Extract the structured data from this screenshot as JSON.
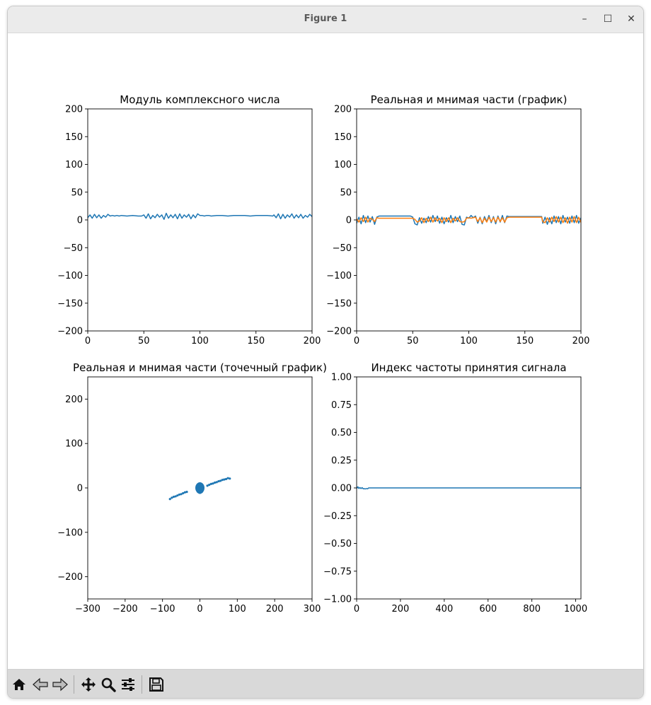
{
  "window": {
    "title": "Figure 1",
    "controls": {
      "minimize": "–",
      "maximize": "☐",
      "close": "✕"
    }
  },
  "toolbar": {
    "icons": [
      "home-icon",
      "back-icon",
      "forward-icon",
      "pan-icon",
      "zoom-icon",
      "configure-subplots-icon",
      "save-icon"
    ]
  },
  "colors": {
    "series1": "#1f77b4",
    "series2": "#ff7f0e"
  },
  "chart_data": [
    {
      "type": "line",
      "title": "Модуль комплексного числа",
      "xlim": [
        0,
        200
      ],
      "ylim": [
        -200,
        200
      ],
      "xticks": [
        0,
        50,
        100,
        150,
        200
      ],
      "xtick_labels": [
        "0",
        "50",
        "100",
        "150",
        "200"
      ],
      "yticks": [
        -200,
        -150,
        -100,
        -50,
        0,
        50,
        100,
        150,
        200
      ],
      "ytick_labels": [
        "−200",
        "−150",
        "−100",
        "−50",
        "0",
        "50",
        "100",
        "150",
        "200"
      ],
      "series": [
        {
          "x": [
            0,
            2,
            4,
            6,
            8,
            10,
            12,
            14,
            16,
            18,
            20,
            22,
            24,
            26,
            28,
            30,
            35,
            40,
            45,
            48,
            50,
            52,
            54,
            56,
            58,
            60,
            62,
            64,
            66,
            68,
            70,
            72,
            74,
            76,
            78,
            80,
            82,
            84,
            86,
            88,
            90,
            92,
            94,
            96,
            98,
            100,
            102,
            104,
            106,
            108,
            110,
            115,
            120,
            125,
            130,
            135,
            140,
            145,
            150,
            155,
            160,
            165,
            166,
            168,
            170,
            172,
            174,
            176,
            178,
            180,
            182,
            184,
            186,
            188,
            190,
            192,
            194,
            196,
            198,
            200
          ],
          "y": [
            4,
            9,
            3,
            10,
            4,
            9,
            3,
            8,
            5,
            10,
            7,
            8,
            7,
            8,
            7,
            8,
            7,
            8,
            7,
            7,
            9,
            3,
            11,
            2,
            8,
            4,
            10,
            5,
            9,
            1,
            12,
            3,
            9,
            4,
            10,
            2,
            11,
            3,
            9,
            5,
            10,
            2,
            9,
            4,
            11,
            8,
            8,
            7,
            8,
            8,
            7,
            8,
            8,
            7,
            8,
            8,
            8,
            7,
            8,
            8,
            8,
            7,
            9,
            4,
            11,
            2,
            10,
            3,
            9,
            5,
            11,
            3,
            9,
            4,
            10,
            3,
            8,
            5,
            10,
            6
          ]
        }
      ]
    },
    {
      "type": "line",
      "title": "Реальная и мнимая части (график)",
      "xlim": [
        0,
        200
      ],
      "ylim": [
        -200,
        200
      ],
      "xticks": [
        0,
        50,
        100,
        150,
        200
      ],
      "xtick_labels": [
        "0",
        "50",
        "100",
        "150",
        "200"
      ],
      "yticks": [
        -200,
        -150,
        -100,
        -50,
        0,
        50,
        100,
        150,
        200
      ],
      "ytick_labels": [
        "−200",
        "−150",
        "−100",
        "−50",
        "0",
        "50",
        "100",
        "150",
        "200"
      ],
      "series": [
        {
          "x": [
            0,
            2,
            4,
            6,
            8,
            10,
            12,
            14,
            16,
            18,
            20,
            25,
            30,
            35,
            40,
            45,
            48,
            50,
            52,
            54,
            56,
            58,
            60,
            62,
            64,
            66,
            68,
            70,
            72,
            74,
            76,
            78,
            80,
            82,
            84,
            86,
            88,
            90,
            92,
            94,
            96,
            98,
            100,
            102,
            104,
            106,
            108,
            110,
            112,
            114,
            116,
            118,
            120,
            122,
            124,
            126,
            128,
            130,
            132,
            134,
            136,
            140,
            145,
            150,
            155,
            160,
            165,
            166,
            168,
            170,
            172,
            174,
            176,
            178,
            180,
            182,
            184,
            186,
            188,
            190,
            192,
            194,
            196,
            198,
            200
          ],
          "y": [
            -6,
            5,
            -7,
            8,
            -5,
            7,
            -4,
            6,
            -8,
            5,
            7,
            7,
            7,
            7,
            7,
            7,
            7,
            5,
            -7,
            -9,
            4,
            -6,
            3,
            -5,
            6,
            -4,
            8,
            -3,
            7,
            -6,
            5,
            -7,
            4,
            -4,
            8,
            -5,
            6,
            -3,
            7,
            -8,
            -9,
            5,
            3,
            8,
            4,
            7,
            -6,
            5,
            -7,
            6,
            -3,
            8,
            -5,
            6,
            -7,
            7,
            -4,
            8,
            -5,
            7,
            6,
            6,
            6,
            6,
            6,
            6,
            6,
            -6,
            5,
            -8,
            4,
            -7,
            7,
            -5,
            6,
            -7,
            8,
            -4,
            5,
            -6,
            7,
            -5,
            8,
            -6,
            4
          ]
        },
        {
          "x": [
            0,
            2,
            4,
            6,
            8,
            10,
            12,
            14,
            16,
            18,
            20,
            25,
            30,
            35,
            40,
            45,
            48,
            50,
            52,
            54,
            56,
            58,
            60,
            62,
            64,
            66,
            68,
            70,
            72,
            74,
            76,
            78,
            80,
            82,
            84,
            86,
            88,
            90,
            92,
            94,
            96,
            98,
            100,
            102,
            104,
            106,
            108,
            110,
            112,
            114,
            116,
            118,
            120,
            122,
            124,
            126,
            128,
            130,
            132,
            134,
            136,
            140,
            145,
            150,
            155,
            160,
            165,
            166,
            168,
            170,
            172,
            174,
            176,
            178,
            180,
            182,
            184,
            186,
            188,
            190,
            192,
            194,
            196,
            198,
            200
          ],
          "y": [
            2,
            -4,
            4,
            -3,
            5,
            -4,
            3,
            1,
            -3,
            4,
            3,
            3,
            3,
            3,
            3,
            3,
            3,
            3,
            1,
            -4,
            -2,
            4,
            -5,
            3,
            -3,
            5,
            -4,
            4,
            -2,
            3,
            -5,
            4,
            -3,
            4,
            -5,
            3,
            -2,
            4,
            -3,
            -4,
            -3,
            3,
            4,
            3,
            4,
            5,
            -3,
            4,
            -5,
            3,
            -4,
            5,
            -3,
            4,
            -4,
            5,
            -3,
            4,
            -4,
            4,
            5,
            5,
            5,
            5,
            5,
            5,
            5,
            -3,
            -5,
            4,
            -4,
            5,
            -3,
            6,
            -4,
            5,
            -5,
            4,
            -6,
            5,
            -4,
            6,
            -5,
            5,
            -5
          ]
        }
      ]
    },
    {
      "type": "scatter",
      "title": "Реальная и мнимая части (точечный график)",
      "xlim": [
        -300,
        300
      ],
      "ylim": [
        -250,
        250
      ],
      "xticks": [
        -300,
        -200,
        -100,
        0,
        100,
        200,
        300
      ],
      "xtick_labels": [
        "−300",
        "−200",
        "−100",
        "0",
        "100",
        "200",
        "300"
      ],
      "yticks": [
        -200,
        -100,
        0,
        100,
        200
      ],
      "ytick_labels": [
        "−200",
        "−100",
        "0",
        "100",
        "200"
      ],
      "series": [
        {
          "x": [
            -80,
            -75,
            -70,
            -65,
            -60,
            -55,
            -50,
            -45,
            -40,
            -35,
            20,
            25,
            30,
            35,
            40,
            45,
            50,
            55,
            60,
            65,
            70,
            75,
            80,
            -8,
            -6,
            -4,
            -2,
            0,
            2,
            4,
            6,
            8,
            -7,
            -5,
            -3,
            -1,
            1,
            3,
            5,
            7,
            -8,
            -6,
            -4,
            -2,
            0,
            2,
            4,
            6,
            8,
            -7,
            -5,
            -3,
            -1,
            1,
            3,
            5,
            7,
            -6,
            -4,
            -2,
            0,
            2,
            4,
            6,
            -5,
            -3,
            -1,
            1,
            3,
            5
          ],
          "y": [
            -25,
            -22,
            -20,
            -19,
            -17,
            -15,
            -14,
            -12,
            -10,
            -9,
            5,
            7,
            9,
            10,
            12,
            13,
            15,
            16,
            18,
            19,
            20,
            22,
            21,
            4,
            6,
            7,
            8,
            9,
            8,
            7,
            6,
            4,
            2,
            3,
            4,
            5,
            5,
            4,
            3,
            2,
            0,
            1,
            1,
            0,
            -1,
            0,
            1,
            1,
            0,
            -2,
            -3,
            -4,
            -5,
            -5,
            -4,
            -3,
            -2,
            -5,
            -6,
            -7,
            -8,
            -7,
            -6,
            -5,
            -9,
            -10,
            -11,
            -11,
            -10,
            -9
          ]
        }
      ]
    },
    {
      "type": "line",
      "title": "Индекс частоты принятия сигнала",
      "xlim": [
        0,
        1024
      ],
      "ylim": [
        -1.0,
        1.0
      ],
      "xticks": [
        0,
        200,
        400,
        600,
        800,
        1000
      ],
      "xtick_labels": [
        "0",
        "200",
        "400",
        "600",
        "800",
        "1000"
      ],
      "yticks": [
        -1.0,
        -0.75,
        -0.5,
        -0.25,
        0.0,
        0.25,
        0.5,
        0.75,
        1.0
      ],
      "ytick_labels": [
        "−1.00",
        "−0.75",
        "−0.50",
        "−0.25",
        "0.00",
        "0.25",
        "0.50",
        "0.75",
        "1.00"
      ],
      "series": [
        {
          "x": [
            0,
            3,
            6,
            10,
            15,
            20,
            25,
            30,
            35,
            40,
            45,
            50,
            55,
            60,
            100,
            200,
            300,
            400,
            500,
            600,
            700,
            800,
            900,
            1000,
            1024
          ],
          "y": [
            0.01,
            0.0,
            0.01,
            -0.005,
            0.004,
            -0.006,
            0.003,
            -0.008,
            -0.007,
            -0.009,
            -0.006,
            -0.008,
            0.0,
            0.0,
            0.0,
            0.0,
            0.0,
            0.0,
            0.0,
            0.0,
            0.0,
            0.0,
            0.0,
            0.0,
            0.0
          ]
        }
      ]
    }
  ]
}
